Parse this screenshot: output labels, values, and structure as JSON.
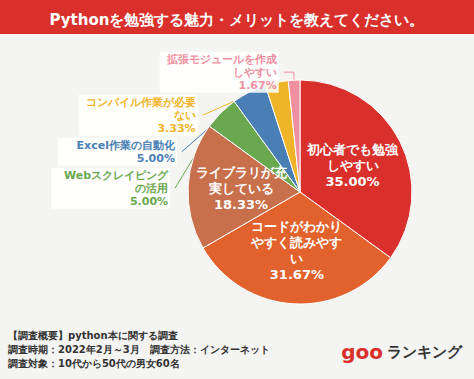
{
  "chart_data": {
    "type": "pie",
    "title": "Pythonを勉強する魅力・メリットを教えてください。",
    "categories": [
      "初心者でも勉強しやすい",
      "コードがわかりやすく読みやすい",
      "ライブラリが充実している",
      "Webスクレイピングの活用",
      "Excel作業の自動化",
      "コンパイル作業が必要ない",
      "拡張モジュールを作成しやすい"
    ],
    "values": [
      35,
      31.67,
      18.33,
      5,
      5,
      3.33,
      1.67
    ],
    "value_labels": [
      "35.00%",
      "31.67%",
      "18.33%",
      "5.00%",
      "5.00%",
      "3.33%",
      "1.67%"
    ],
    "colors": [
      "#d9302c",
      "#e2622e",
      "#c8704c",
      "#6aa84f",
      "#4a7fb5",
      "#f0b429",
      "#f08fa0"
    ],
    "data_labels": true,
    "annotations": [
      "【調査概要】python本に関する調査",
      "調査時期：2022年2月～3月　調査方法：インターネット",
      "調査対象：10代から50代の男女60名"
    ],
    "source": "goo ランキング"
  }
}
